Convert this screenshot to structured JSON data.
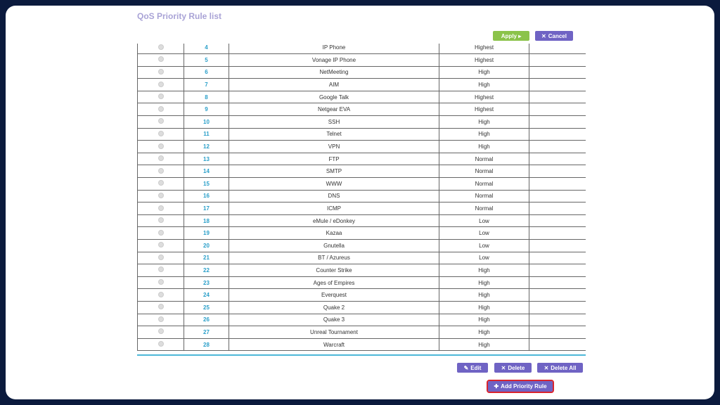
{
  "page": {
    "title": "QoS Priority Rule list"
  },
  "toolbar": {
    "apply": "Apply ▸",
    "cancel": "Cancel"
  },
  "rules": [
    {
      "n": "4",
      "name": "IP Phone",
      "priority": "Highest"
    },
    {
      "n": "5",
      "name": "Vonage IP Phone",
      "priority": "Highest"
    },
    {
      "n": "6",
      "name": "NetMeeting",
      "priority": "High"
    },
    {
      "n": "7",
      "name": "AIM",
      "priority": "High"
    },
    {
      "n": "8",
      "name": "Google Talk",
      "priority": "Highest"
    },
    {
      "n": "9",
      "name": "Netgear EVA",
      "priority": "Highest"
    },
    {
      "n": "10",
      "name": "SSH",
      "priority": "High"
    },
    {
      "n": "11",
      "name": "Telnet",
      "priority": "High"
    },
    {
      "n": "12",
      "name": "VPN",
      "priority": "High"
    },
    {
      "n": "13",
      "name": "FTP",
      "priority": "Normal"
    },
    {
      "n": "14",
      "name": "SMTP",
      "priority": "Normal"
    },
    {
      "n": "15",
      "name": "WWW",
      "priority": "Normal"
    },
    {
      "n": "16",
      "name": "DNS",
      "priority": "Normal"
    },
    {
      "n": "17",
      "name": "ICMP",
      "priority": "Normal"
    },
    {
      "n": "18",
      "name": "eMule / eDonkey",
      "priority": "Low"
    },
    {
      "n": "19",
      "name": "Kazaa",
      "priority": "Low"
    },
    {
      "n": "20",
      "name": "Gnutella",
      "priority": "Low"
    },
    {
      "n": "21",
      "name": "BT / Azureus",
      "priority": "Low"
    },
    {
      "n": "22",
      "name": "Counter Strike",
      "priority": "High"
    },
    {
      "n": "23",
      "name": "Ages of Empires",
      "priority": "High"
    },
    {
      "n": "24",
      "name": "Everquest",
      "priority": "High"
    },
    {
      "n": "25",
      "name": "Quake 2",
      "priority": "High"
    },
    {
      "n": "26",
      "name": "Quake 3",
      "priority": "High"
    },
    {
      "n": "27",
      "name": "Unreal Tournament",
      "priority": "High"
    },
    {
      "n": "28",
      "name": "Warcraft",
      "priority": "High"
    }
  ],
  "actions": {
    "edit": "Edit",
    "delete": "Delete",
    "delete_all": "Delete All",
    "add": "Add Priority Rule"
  }
}
